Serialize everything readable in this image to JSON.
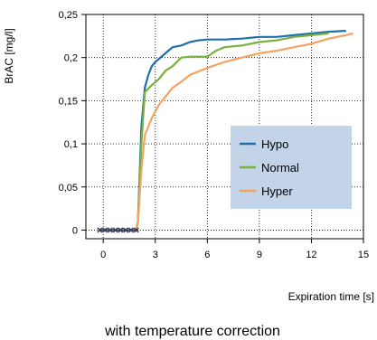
{
  "chart_data": {
    "type": "line",
    "title": "",
    "xlabel": "Expiration time [s]",
    "ylabel": "BrAC [mg/l]",
    "caption": "with temperature correction",
    "xlim": [
      -1,
      15
    ],
    "ylim": [
      -0.01,
      0.25
    ],
    "x_ticks": [
      0,
      3,
      6,
      9,
      12,
      15
    ],
    "y_ticks": [
      0,
      0.05,
      0.1,
      0.15,
      0.2,
      0.25
    ],
    "y_tick_labels": [
      "0",
      "0,05",
      "0,1",
      "0,15",
      "0,2",
      "0,25"
    ],
    "grid": true,
    "legend_position": "center-right",
    "legend_background": "#c3d3e8",
    "baseline_marker_color": "#3a3f5c",
    "series": [
      {
        "name": "Hypo",
        "color": "#1f6fae",
        "points": [
          [
            -0.2,
            0
          ],
          [
            1.9,
            0
          ],
          [
            2.0,
            0.01
          ],
          [
            2.2,
            0.12
          ],
          [
            2.4,
            0.165
          ],
          [
            2.6,
            0.18
          ],
          [
            2.8,
            0.19
          ],
          [
            3.0,
            0.195
          ],
          [
            3.3,
            0.2
          ],
          [
            3.7,
            0.207
          ],
          [
            4.0,
            0.212
          ],
          [
            4.5,
            0.214
          ],
          [
            5.0,
            0.218
          ],
          [
            5.5,
            0.22
          ],
          [
            6.0,
            0.221
          ],
          [
            7.0,
            0.221
          ],
          [
            8.0,
            0.222
          ],
          [
            9.0,
            0.224
          ],
          [
            10.0,
            0.224
          ],
          [
            11.0,
            0.226
          ],
          [
            12.0,
            0.228
          ],
          [
            13.0,
            0.23
          ],
          [
            14.0,
            0.231
          ]
        ]
      },
      {
        "name": "Normal",
        "color": "#7ab03f",
        "points": [
          [
            -0.2,
            0
          ],
          [
            1.9,
            0
          ],
          [
            2.0,
            0.01
          ],
          [
            2.2,
            0.1
          ],
          [
            2.4,
            0.16
          ],
          [
            2.8,
            0.168
          ],
          [
            3.2,
            0.175
          ],
          [
            3.6,
            0.185
          ],
          [
            4.0,
            0.19
          ],
          [
            4.5,
            0.2
          ],
          [
            5.0,
            0.201
          ],
          [
            6.0,
            0.201
          ],
          [
            6.5,
            0.208
          ],
          [
            7.0,
            0.212
          ],
          [
            8.0,
            0.214
          ],
          [
            9.0,
            0.218
          ],
          [
            10.0,
            0.22
          ],
          [
            11.0,
            0.224
          ],
          [
            12.0,
            0.226
          ],
          [
            13.0,
            0.228
          ]
        ]
      },
      {
        "name": "Hyper",
        "color": "#f4a261",
        "points": [
          [
            -0.2,
            0
          ],
          [
            1.9,
            0
          ],
          [
            2.0,
            0.01
          ],
          [
            2.2,
            0.07
          ],
          [
            2.4,
            0.11
          ],
          [
            2.8,
            0.13
          ],
          [
            3.2,
            0.145
          ],
          [
            3.6,
            0.155
          ],
          [
            4.0,
            0.165
          ],
          [
            4.5,
            0.172
          ],
          [
            5.0,
            0.18
          ],
          [
            6.0,
            0.188
          ],
          [
            7.0,
            0.195
          ],
          [
            8.0,
            0.2
          ],
          [
            9.0,
            0.205
          ],
          [
            10.0,
            0.208
          ],
          [
            11.0,
            0.212
          ],
          [
            12.0,
            0.216
          ],
          [
            13.0,
            0.222
          ],
          [
            14.0,
            0.226
          ],
          [
            14.4,
            0.228
          ]
        ]
      }
    ],
    "baseline_markers": {
      "name": "",
      "x": [
        -0.2,
        0.1,
        0.4,
        0.7,
        1.0,
        1.3,
        1.6,
        1.9
      ],
      "y": 0
    }
  }
}
